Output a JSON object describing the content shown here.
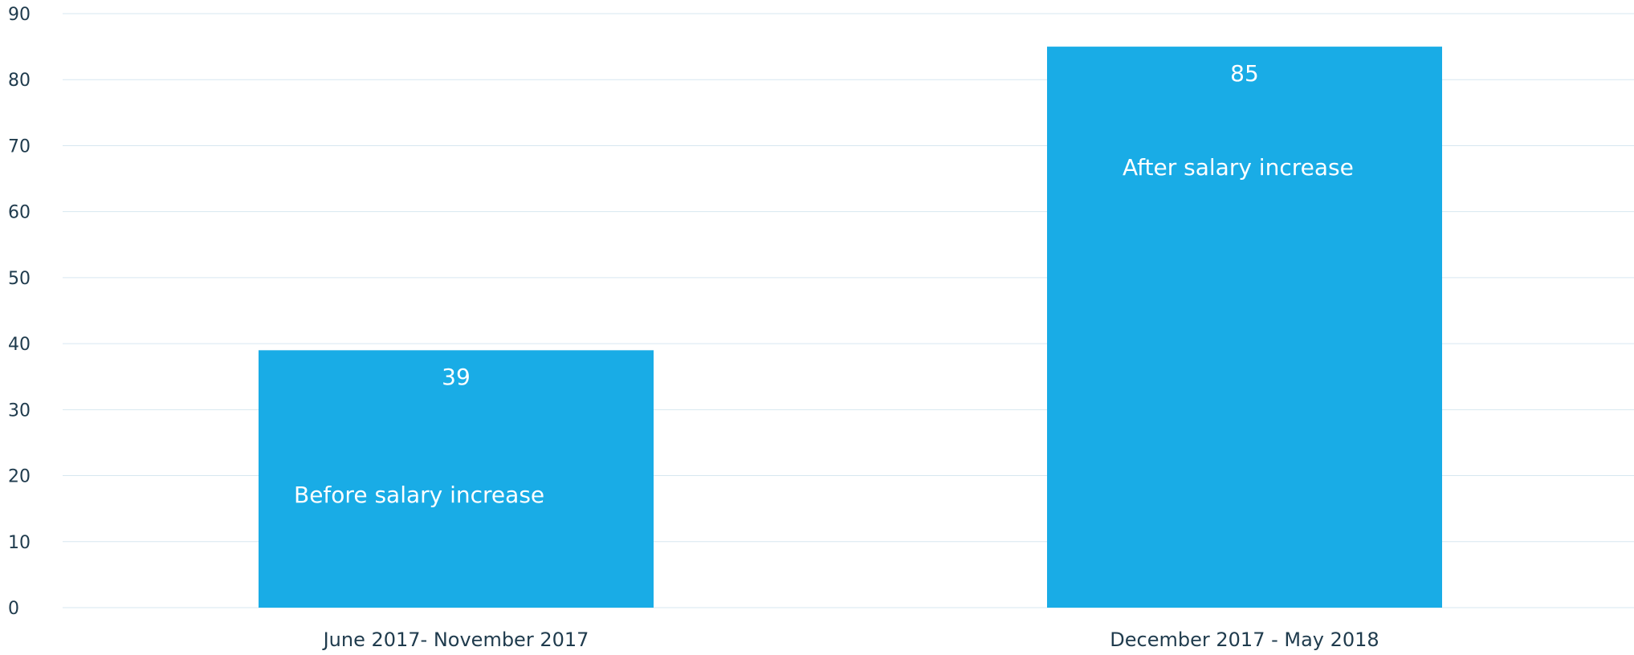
{
  "chart_data": {
    "type": "bar",
    "categories": [
      "June 2017- November 2017",
      "December 2017 - May 2018"
    ],
    "values": [
      39,
      85
    ],
    "annotations": [
      "Before salary increase",
      "After salary increase"
    ],
    "data_labels": [
      "39",
      "85"
    ],
    "ylim": [
      0,
      90
    ],
    "y_ticks": [
      0,
      10,
      20,
      30,
      40,
      50,
      60,
      70,
      80,
      90
    ],
    "grid": true,
    "colors": {
      "bar": "#19ace6",
      "grid": "#d7e7f0",
      "text": "#1f3b4d",
      "data_label": "#ffffff"
    }
  }
}
